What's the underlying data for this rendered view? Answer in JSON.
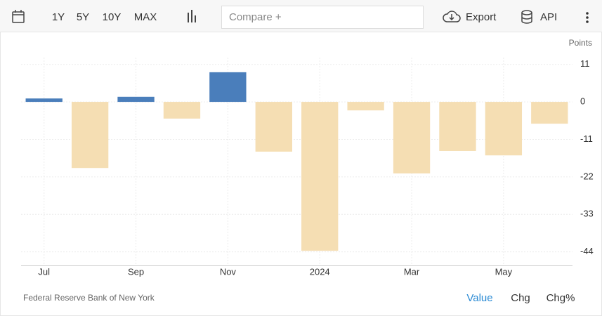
{
  "toolbar": {
    "ranges": [
      "1Y",
      "5Y",
      "10Y",
      "MAX"
    ],
    "compare": "Compare +",
    "export": "Export",
    "api": "API"
  },
  "chart_data": {
    "type": "bar",
    "y_label": "Points",
    "categories": [
      "Jul",
      null,
      "Sep",
      null,
      "Nov",
      null,
      "2024",
      null,
      "Mar",
      null,
      "May",
      null
    ],
    "values": [
      1,
      -19.4,
      1.5,
      -4.9,
      8.7,
      -14.6,
      -43.7,
      -2.5,
      -21,
      -14.4,
      -15.7,
      -6.4
    ],
    "positive_color": "#4a7ebb",
    "negative_color": "#f5deb3",
    "ylim": [
      -48,
      13
    ],
    "yticks": [
      11,
      0,
      -11,
      -22,
      -33,
      -44
    ],
    "grid": true
  },
  "footer": {
    "source": "Federal Reserve Bank of New York",
    "tabs": [
      "Value",
      "Chg",
      "Chg%"
    ]
  }
}
